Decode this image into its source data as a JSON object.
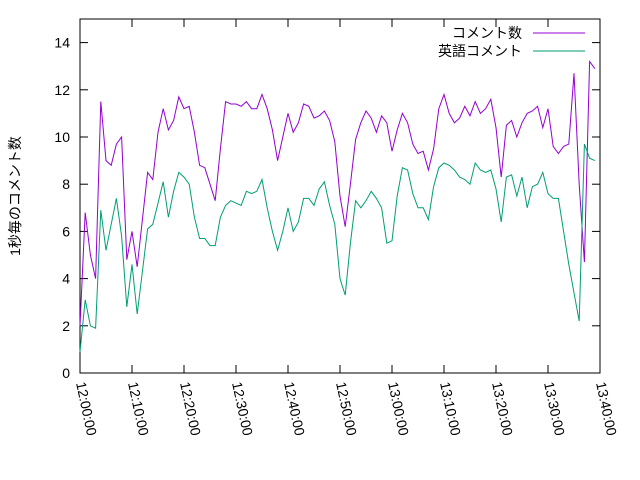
{
  "chart_data": {
    "type": "line",
    "y_label": "1秒毎のコメント数",
    "x": [
      0,
      1,
      2,
      3,
      4,
      5,
      6,
      7,
      8,
      9,
      10,
      11,
      12,
      13,
      14,
      15,
      16,
      17,
      18,
      19,
      20,
      21,
      22,
      23,
      24,
      25,
      26,
      27,
      28,
      29,
      30,
      31,
      32,
      33,
      34,
      35,
      36,
      37,
      38,
      39,
      40,
      41,
      42,
      43,
      44,
      45,
      46,
      47,
      48,
      49,
      50,
      51,
      52,
      53,
      54,
      55,
      56,
      57,
      58,
      59,
      60,
      61,
      62,
      63,
      64,
      65,
      66,
      67,
      68,
      69,
      70,
      71,
      72,
      73,
      74,
      75,
      76,
      77,
      78,
      79,
      80,
      81,
      82,
      83,
      84,
      85,
      86,
      87,
      88,
      89,
      90,
      91,
      92,
      93,
      94,
      95,
      96,
      97,
      98,
      99
    ],
    "series": [
      {
        "name": "コメント数",
        "color": "#9400d3",
        "values": [
          2.0,
          6.8,
          5.0,
          4.0,
          11.5,
          9.0,
          8.8,
          9.7,
          10.0,
          4.8,
          6.0,
          4.5,
          6.5,
          8.5,
          8.2,
          10.2,
          11.2,
          10.3,
          10.7,
          11.7,
          11.2,
          11.3,
          10.2,
          8.8,
          8.7,
          8.0,
          7.3,
          9.5,
          11.5,
          11.4,
          11.4,
          11.3,
          11.5,
          11.2,
          11.2,
          11.8,
          11.2,
          10.3,
          9.0,
          10.0,
          11.0,
          10.2,
          10.6,
          11.4,
          11.3,
          10.8,
          10.9,
          11.1,
          10.7,
          9.8,
          7.5,
          6.2,
          8.0,
          9.9,
          10.6,
          11.1,
          10.8,
          10.2,
          10.9,
          10.6,
          9.4,
          10.3,
          11.0,
          10.6,
          9.7,
          9.3,
          9.4,
          8.6,
          9.5,
          11.2,
          11.8,
          11.0,
          10.6,
          10.8,
          11.3,
          10.9,
          11.5,
          11.0,
          11.2,
          11.6,
          10.4,
          8.3,
          10.5,
          10.7,
          10.0,
          10.6,
          11.0,
          11.1,
          11.3,
          10.4,
          11.2,
          9.6,
          9.3,
          9.6,
          9.7,
          12.7,
          8.0,
          4.7,
          13.2,
          12.9
        ]
      },
      {
        "name": "英語コメント",
        "color": "#009e73",
        "values": [
          0.9,
          3.1,
          2.0,
          1.9,
          6.9,
          5.2,
          6.3,
          7.4,
          5.8,
          2.8,
          4.6,
          2.5,
          4.3,
          6.1,
          6.3,
          7.2,
          8.1,
          6.6,
          7.7,
          8.5,
          8.3,
          8.0,
          6.6,
          5.7,
          5.7,
          5.4,
          5.4,
          6.6,
          7.1,
          7.3,
          7.2,
          7.1,
          7.7,
          7.6,
          7.7,
          8.2,
          7.0,
          6.0,
          5.2,
          6.0,
          7.0,
          6.0,
          6.4,
          7.4,
          7.4,
          7.1,
          7.8,
          8.1,
          7.1,
          6.3,
          4.0,
          3.3,
          5.5,
          7.3,
          7.0,
          7.3,
          7.7,
          7.4,
          7.0,
          5.5,
          5.6,
          7.5,
          8.7,
          8.6,
          7.6,
          7.0,
          7.0,
          6.5,
          7.9,
          8.7,
          8.9,
          8.8,
          8.6,
          8.3,
          8.2,
          8.0,
          8.9,
          8.6,
          8.5,
          8.6,
          7.8,
          6.4,
          8.3,
          8.4,
          7.5,
          8.3,
          7.0,
          7.9,
          8.0,
          8.5,
          7.6,
          7.4,
          7.4,
          6.0,
          4.6,
          3.4,
          2.2,
          9.7,
          9.1,
          9.0
        ]
      }
    ],
    "xlim": [
      0,
      100
    ],
    "xticks": [
      {
        "value": 0,
        "label": "12:00:00"
      },
      {
        "value": 10,
        "label": "12:10:00"
      },
      {
        "value": 20,
        "label": "12:20:00"
      },
      {
        "value": 30,
        "label": "12:30:00"
      },
      {
        "value": 40,
        "label": "12:40:00"
      },
      {
        "value": 50,
        "label": "12:50:00"
      },
      {
        "value": 60,
        "label": "13:00:00"
      },
      {
        "value": 70,
        "label": "13:10:00"
      },
      {
        "value": 80,
        "label": "13:20:00"
      },
      {
        "value": 90,
        "label": "13:30:00"
      },
      {
        "value": 100,
        "label": "13:40:00"
      }
    ],
    "ylim": [
      0,
      15
    ],
    "yticks": [
      0,
      2,
      4,
      6,
      8,
      10,
      12,
      14
    ],
    "legend": "top-right"
  }
}
